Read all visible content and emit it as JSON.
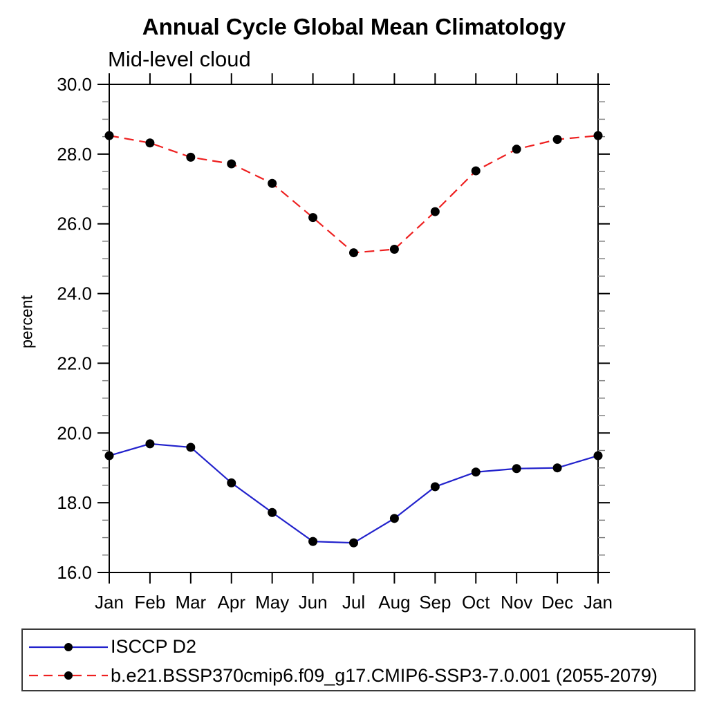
{
  "title": "Annual Cycle Global Mean Climatology",
  "subtitle": "Mid-level cloud",
  "ylabel": "percent",
  "colors": {
    "obs_line": "#2222cc",
    "model_line": "#ee2020",
    "marker": "#000000",
    "axis": "#000000",
    "minor_tick": "#777777"
  },
  "legend": {
    "entries": [
      {
        "label": "ISCCP D2",
        "color": "#2222cc",
        "dash": "solid",
        "marker": "#000000"
      },
      {
        "label": "b.e21.BSSP370cmip6.f09_g17.CMIP6-SSP3-7.0.001 (2055-2079)",
        "color": "#ee2020",
        "dash": "dashed",
        "marker": "#000000"
      }
    ]
  },
  "chart_data": {
    "type": "line",
    "title": "Annual Cycle Global Mean Climatology",
    "subtitle": "Mid-level cloud",
    "xlabel": "",
    "ylabel": "percent",
    "x_categories": [
      "Jan",
      "Feb",
      "Mar",
      "Apr",
      "May",
      "Jun",
      "Jul",
      "Aug",
      "Sep",
      "Oct",
      "Nov",
      "Dec",
      "Jan"
    ],
    "series": [
      {
        "name": "ISCCP D2",
        "color": "#2222cc",
        "line_style": "solid",
        "marker": "filled-circle",
        "marker_color": "#000000",
        "values": [
          19.35,
          19.69,
          19.59,
          18.57,
          17.72,
          16.89,
          16.85,
          17.55,
          18.46,
          18.88,
          18.98,
          19.0,
          19.35
        ]
      },
      {
        "name": "b.e21.BSSP370cmip6.f09_g17.CMIP6-SSP3-7.0.001 (2055-2079)",
        "color": "#ee2020",
        "line_style": "dashed",
        "marker": "filled-circle",
        "marker_color": "#000000",
        "values": [
          28.53,
          28.32,
          27.91,
          27.72,
          27.16,
          26.18,
          25.17,
          25.27,
          26.35,
          27.52,
          28.14,
          28.42,
          28.53
        ]
      }
    ],
    "ylim": [
      16.0,
      30.0
    ],
    "y_major_ticks": [
      16,
      18,
      20,
      22,
      24,
      26,
      28,
      30
    ],
    "y_tick_labels": [
      "16.0",
      "18.0",
      "20.0",
      "22.0",
      "24.0",
      "26.0",
      "28.0",
      "30.0"
    ],
    "y_minor_step": 0.5,
    "grid": false,
    "tick_direction": "outward-all-four-sides",
    "legend_position": "bottom-left"
  }
}
